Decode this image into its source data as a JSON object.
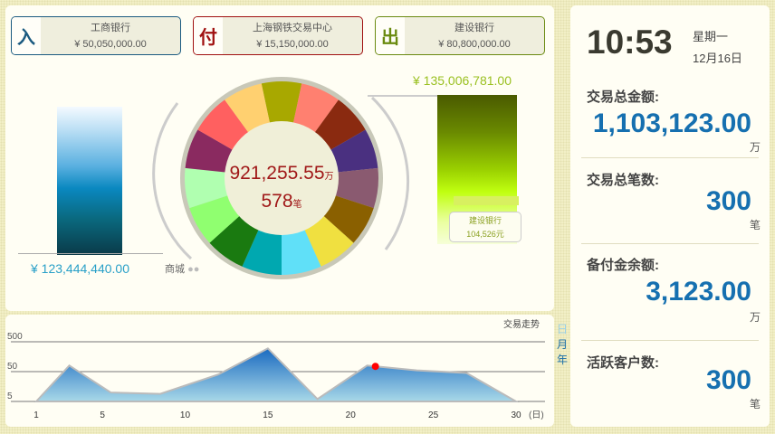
{
  "cards": [
    {
      "icon": "入",
      "name": "工商银行",
      "amount": "¥ 50,050,000.00",
      "color": "#1a5a80"
    },
    {
      "icon": "付",
      "name": "上海钢铁交易中心",
      "amount": "¥ 15,150,000.00",
      "color": "#a01010"
    },
    {
      "icon": "出",
      "name": "建设银行",
      "amount": "¥ 80,800,000.00",
      "color": "#6a8a10"
    }
  ],
  "left_bar": {
    "amount": "¥ 123,444,440.00",
    "legend": "商城"
  },
  "right_bar": {
    "amount": "¥ 135,006,781.00",
    "tooltip_name": "建设银行",
    "tooltip_value": "104,526元"
  },
  "donut": {
    "amount": "921,255.55",
    "amount_unit": "万",
    "count": "578",
    "count_unit": "笔",
    "colors": [
      "#a8a800",
      "#ff8070",
      "#8a2a10",
      "#4a3080",
      "#8a5a70",
      "#8a6000",
      "#f0e040",
      "#60e0f8",
      "#00a8b0",
      "#1a7a10",
      "#90ff70",
      "#b0ffb0",
      "#8a2a60",
      "#ff6060",
      "#ffd070"
    ]
  },
  "chart_data": {
    "type": "area",
    "title": "交易走势",
    "x_unit": "(日)",
    "y_scale": "log",
    "yticks": [
      "500",
      "50",
      "5"
    ],
    "xticks": [
      "1",
      "5",
      "10",
      "15",
      "20",
      "25",
      "30"
    ],
    "x": [
      1,
      3,
      5.5,
      8.5,
      12,
      15,
      18,
      21,
      24,
      27,
      30
    ],
    "y": [
      5,
      80,
      10,
      9,
      40,
      300,
      6,
      80,
      55,
      45,
      5
    ],
    "highlight": {
      "x": 21.5,
      "y": 75
    },
    "color": "#2a7ac0"
  },
  "period_toggle": [
    "日",
    "月",
    "年"
  ],
  "clock": {
    "time": "10:53",
    "weekday": "星期一",
    "date": "12月16日"
  },
  "stats": [
    {
      "label": "交易总金额:",
      "value": "1,103,123.00",
      "unit": "万"
    },
    {
      "label": "交易总笔数:",
      "value": "300",
      "unit": "笔"
    },
    {
      "label": "备付金余额:",
      "value": "3,123.00",
      "unit": "万"
    },
    {
      "label": "活跃客户数:",
      "value": "300",
      "unit": "笔"
    }
  ]
}
